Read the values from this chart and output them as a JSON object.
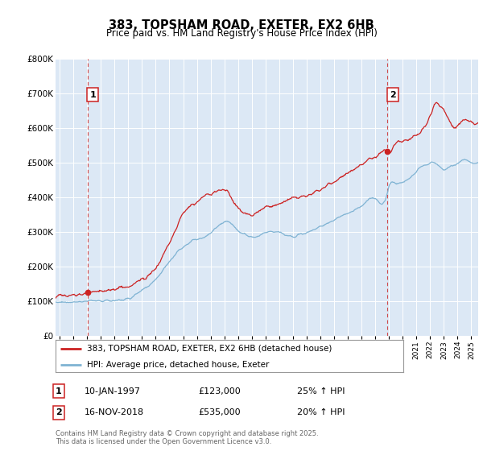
{
  "title": "383, TOPSHAM ROAD, EXETER, EX2 6HB",
  "subtitle": "Price paid vs. HM Land Registry's House Price Index (HPI)",
  "legend_line1": "383, TOPSHAM ROAD, EXETER, EX2 6HB (detached house)",
  "legend_line2": "HPI: Average price, detached house, Exeter",
  "sale1_label": "1",
  "sale1_date": "10-JAN-1997",
  "sale1_price": "£123,000",
  "sale1_hpi": "25% ↑ HPI",
  "sale2_label": "2",
  "sale2_date": "16-NOV-2018",
  "sale2_price": "£535,000",
  "sale2_hpi": "20% ↑ HPI",
  "copyright": "Contains HM Land Registry data © Crown copyright and database right 2025.\nThis data is licensed under the Open Government Licence v3.0.",
  "price_color": "#cc2222",
  "hpi_color": "#7fb3d3",
  "background_color": "#dce8f5",
  "fig_bg": "#ffffff",
  "ylim": [
    0,
    800000
  ],
  "xlim_start": 1994.7,
  "xlim_end": 2025.5,
  "sale1_year": 1997.04,
  "sale1_value": 123000,
  "sale2_year": 2018.88,
  "sale2_value": 535000
}
